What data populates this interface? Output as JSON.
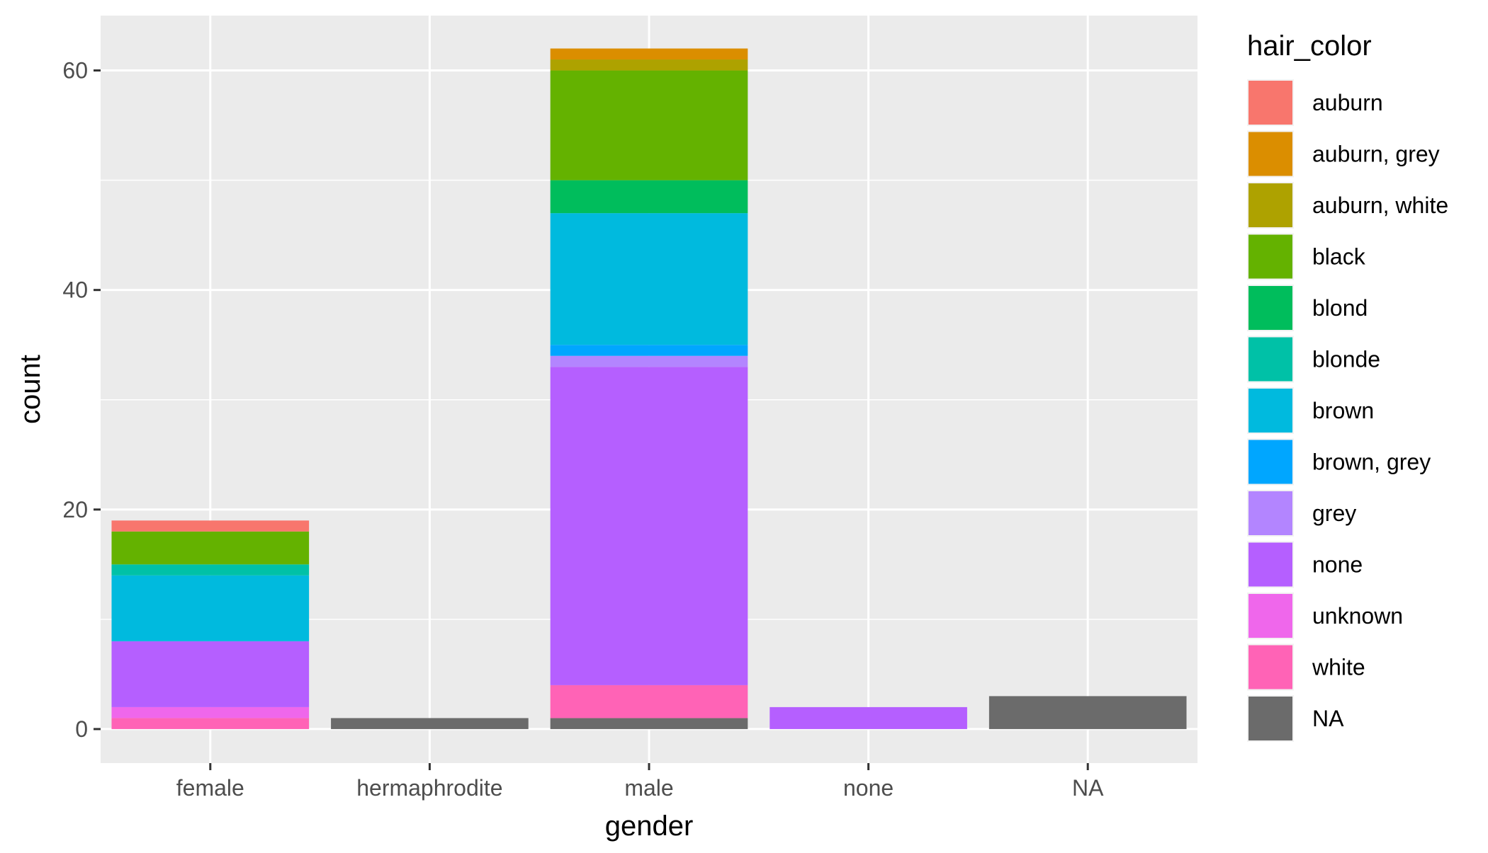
{
  "chart_data": {
    "type": "bar",
    "stacked": true,
    "title": "",
    "xlabel": "gender",
    "ylabel": "count",
    "categories": [
      "female",
      "hermaphrodite",
      "male",
      "none",
      "NA"
    ],
    "ylim": [
      -3.1,
      65
    ],
    "yticks": [
      0,
      20,
      40,
      60
    ],
    "grid": true,
    "legend": {
      "title": "hair_color",
      "position": "right"
    },
    "series": [
      {
        "name": "auburn",
        "color": "#F8766D",
        "values": [
          1,
          0,
          0,
          0,
          0
        ]
      },
      {
        "name": "auburn, grey",
        "color": "#DB8E00",
        "values": [
          0,
          0,
          1,
          0,
          0
        ]
      },
      {
        "name": "auburn, white",
        "color": "#AEA200",
        "values": [
          0,
          0,
          1,
          0,
          0
        ]
      },
      {
        "name": "black",
        "color": "#64B200",
        "values": [
          3,
          0,
          10,
          0,
          0
        ]
      },
      {
        "name": "blond",
        "color": "#00BD5C",
        "values": [
          0,
          0,
          3,
          0,
          0
        ]
      },
      {
        "name": "blonde",
        "color": "#00C1A7",
        "values": [
          1,
          0,
          0,
          0,
          0
        ]
      },
      {
        "name": "brown",
        "color": "#00BADE",
        "values": [
          6,
          0,
          12,
          0,
          0
        ]
      },
      {
        "name": "brown, grey",
        "color": "#00A6FF",
        "values": [
          0,
          0,
          1,
          0,
          0
        ]
      },
      {
        "name": "grey",
        "color": "#B385FF",
        "values": [
          0,
          0,
          1,
          0,
          0
        ]
      },
      {
        "name": "none",
        "color": "#B55FFF",
        "values": [
          6,
          0,
          29,
          2,
          0
        ]
      },
      {
        "name": "unknown",
        "color": "#EF67EB",
        "values": [
          1,
          0,
          0,
          0,
          0
        ]
      },
      {
        "name": "white",
        "color": "#FF63B6",
        "values": [
          1,
          0,
          3,
          0,
          0
        ]
      },
      {
        "name": "NA",
        "color": "#6B6B6B",
        "values": [
          0,
          1,
          1,
          0,
          3
        ]
      }
    ]
  }
}
